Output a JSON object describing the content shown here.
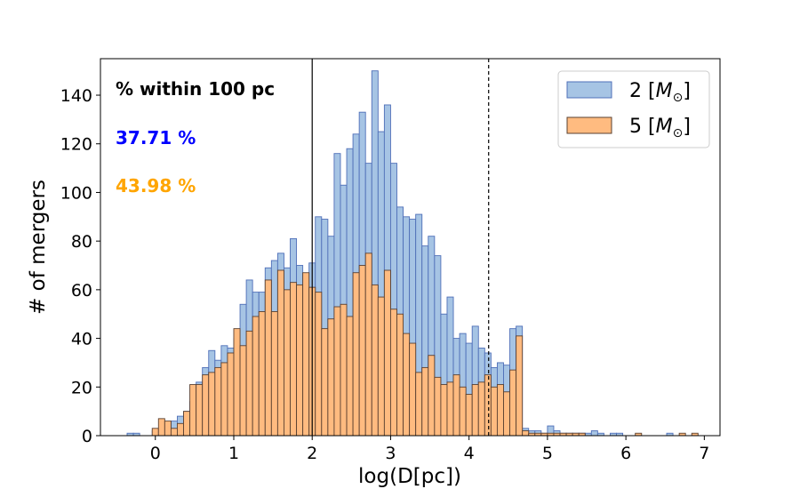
{
  "chart_data": {
    "type": "bar",
    "xlabel": "log(D[pc])",
    "ylabel": "# of mergers",
    "xlim": [
      -0.7,
      7.2
    ],
    "ylim": [
      0,
      155
    ],
    "xticks": [
      0,
      1,
      2,
      3,
      4,
      5,
      6,
      7
    ],
    "yticks": [
      0,
      20,
      40,
      60,
      80,
      100,
      120,
      140
    ],
    "bin_width": 0.08,
    "grid": false,
    "legend_position": "top-right",
    "annotation_title": "% within 100 pc",
    "vlines": [
      {
        "x": 2.0,
        "style": "solid"
      },
      {
        "x": 4.25,
        "style": "dashed"
      }
    ],
    "series": [
      {
        "name": "2 [M_⊙]",
        "legend_base": "2 ",
        "legend_unit": "M",
        "fill": "#a6c4e4",
        "edge": "#4f6fb8",
        "percent_label": "37.71 %",
        "percent_color": "#0000ff",
        "bins": [
          [
            -0.36,
            1
          ],
          [
            -0.28,
            1
          ],
          [
            -0.04,
            2
          ],
          [
            0.04,
            3
          ],
          [
            0.12,
            4
          ],
          [
            0.2,
            6
          ],
          [
            0.28,
            8
          ],
          [
            0.36,
            10
          ],
          [
            0.44,
            14
          ],
          [
            0.52,
            22
          ],
          [
            0.6,
            28
          ],
          [
            0.68,
            35
          ],
          [
            0.76,
            31
          ],
          [
            0.84,
            37
          ],
          [
            0.92,
            36
          ],
          [
            1.0,
            40
          ],
          [
            1.08,
            54
          ],
          [
            1.16,
            64
          ],
          [
            1.24,
            59
          ],
          [
            1.32,
            59
          ],
          [
            1.4,
            69
          ],
          [
            1.48,
            72
          ],
          [
            1.56,
            75
          ],
          [
            1.64,
            69
          ],
          [
            1.72,
            81
          ],
          [
            1.8,
            70
          ],
          [
            1.88,
            62
          ],
          [
            1.96,
            71
          ],
          [
            2.04,
            90
          ],
          [
            2.12,
            89
          ],
          [
            2.2,
            82
          ],
          [
            2.28,
            116
          ],
          [
            2.36,
            103
          ],
          [
            2.44,
            118
          ],
          [
            2.52,
            124
          ],
          [
            2.6,
            133
          ],
          [
            2.68,
            112
          ],
          [
            2.76,
            150
          ],
          [
            2.84,
            125
          ],
          [
            2.92,
            136
          ],
          [
            3.0,
            112
          ],
          [
            3.08,
            94
          ],
          [
            3.16,
            90
          ],
          [
            3.24,
            89
          ],
          [
            3.32,
            91
          ],
          [
            3.4,
            78
          ],
          [
            3.48,
            82
          ],
          [
            3.56,
            74
          ],
          [
            3.64,
            50
          ],
          [
            3.72,
            57
          ],
          [
            3.8,
            40
          ],
          [
            3.88,
            42
          ],
          [
            3.96,
            38
          ],
          [
            4.04,
            45
          ],
          [
            4.12,
            36
          ],
          [
            4.2,
            34
          ],
          [
            4.28,
            28
          ],
          [
            4.36,
            30
          ],
          [
            4.44,
            29
          ],
          [
            4.52,
            44
          ],
          [
            4.6,
            45
          ],
          [
            4.68,
            3
          ],
          [
            4.76,
            2
          ],
          [
            4.84,
            2
          ],
          [
            4.92,
            1
          ],
          [
            5.0,
            4
          ],
          [
            5.08,
            2
          ],
          [
            5.16,
            1
          ],
          [
            5.24,
            1
          ],
          [
            5.32,
            1
          ],
          [
            5.4,
            1
          ],
          [
            5.48,
            1
          ],
          [
            5.56,
            2
          ],
          [
            5.64,
            1
          ],
          [
            5.8,
            1
          ],
          [
            5.88,
            1
          ],
          [
            6.52,
            1
          ]
        ]
      },
      {
        "name": "5 [M_⊙]",
        "legend_base": "5 ",
        "legend_unit": "M",
        "fill": "#ffbb80",
        "edge": "#5a4030",
        "percent_label": "43.98 %",
        "percent_color": "#ffa500",
        "bins": [
          [
            -0.04,
            3
          ],
          [
            0.04,
            7
          ],
          [
            0.12,
            6
          ],
          [
            0.2,
            3
          ],
          [
            0.28,
            5
          ],
          [
            0.36,
            10
          ],
          [
            0.44,
            21
          ],
          [
            0.52,
            21
          ],
          [
            0.6,
            25
          ],
          [
            0.68,
            26
          ],
          [
            0.76,
            28
          ],
          [
            0.84,
            30
          ],
          [
            0.92,
            34
          ],
          [
            1.0,
            44
          ],
          [
            1.08,
            37
          ],
          [
            1.16,
            43
          ],
          [
            1.24,
            49
          ],
          [
            1.32,
            51
          ],
          [
            1.4,
            64
          ],
          [
            1.48,
            51
          ],
          [
            1.56,
            68
          ],
          [
            1.64,
            60
          ],
          [
            1.72,
            63
          ],
          [
            1.8,
            62
          ],
          [
            1.88,
            67
          ],
          [
            1.96,
            61
          ],
          [
            2.04,
            59
          ],
          [
            2.12,
            44
          ],
          [
            2.2,
            48
          ],
          [
            2.28,
            53
          ],
          [
            2.36,
            54
          ],
          [
            2.44,
            49
          ],
          [
            2.52,
            67
          ],
          [
            2.6,
            70
          ],
          [
            2.68,
            75
          ],
          [
            2.76,
            62
          ],
          [
            2.84,
            57
          ],
          [
            2.92,
            68
          ],
          [
            3.0,
            52
          ],
          [
            3.08,
            50
          ],
          [
            3.16,
            42
          ],
          [
            3.24,
            38
          ],
          [
            3.32,
            26
          ],
          [
            3.4,
            28
          ],
          [
            3.48,
            33
          ],
          [
            3.56,
            24
          ],
          [
            3.64,
            21
          ],
          [
            3.72,
            22
          ],
          [
            3.8,
            25
          ],
          [
            3.88,
            20
          ],
          [
            3.96,
            17
          ],
          [
            4.04,
            21
          ],
          [
            4.12,
            22
          ],
          [
            4.2,
            25
          ],
          [
            4.28,
            20
          ],
          [
            4.36,
            21
          ],
          [
            4.44,
            18
          ],
          [
            4.52,
            27
          ],
          [
            4.6,
            41
          ],
          [
            4.68,
            2
          ],
          [
            4.76,
            1
          ],
          [
            4.84,
            1
          ],
          [
            4.92,
            1
          ],
          [
            5.0,
            1
          ],
          [
            5.08,
            1
          ],
          [
            5.16,
            1
          ],
          [
            5.24,
            1
          ],
          [
            5.32,
            1
          ],
          [
            5.4,
            1
          ],
          [
            6.12,
            1
          ],
          [
            6.68,
            1
          ],
          [
            6.84,
            1
          ]
        ]
      }
    ]
  }
}
